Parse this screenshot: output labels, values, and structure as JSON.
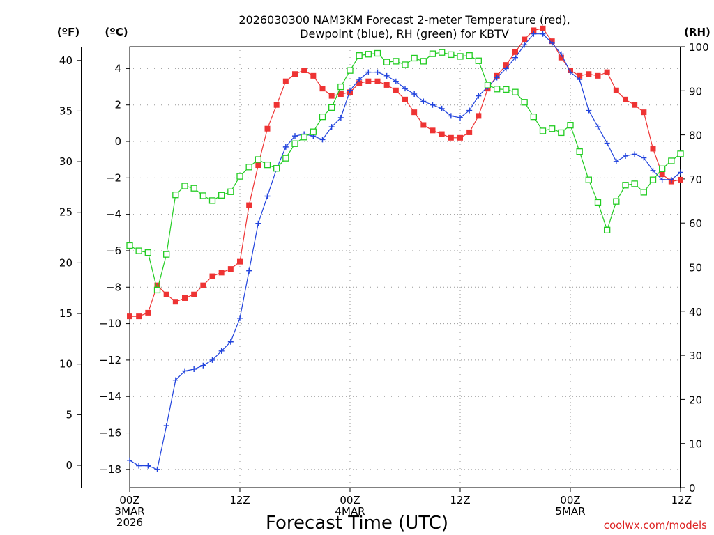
{
  "chart_data": {
    "type": "line",
    "title": [
      "2026030300 NAM3KM Forecast 2-meter Temperature (red),",
      "Dewpoint (blue), RH (green) for KBTV"
    ],
    "xlabel": "Forecast Time (UTC)",
    "credit": "coolwx.com/models",
    "units": {
      "fahrenheit": "(ºF)",
      "celsius": "(ºC)",
      "rh": "(RH)"
    },
    "x_range_hours": [
      0,
      60
    ],
    "x_ticks": [
      {
        "hour": 0,
        "lines": [
          "00Z",
          "3MAR",
          "2026"
        ]
      },
      {
        "hour": 12,
        "lines": [
          "12Z"
        ]
      },
      {
        "hour": 24,
        "lines": [
          "00Z",
          "4MAR"
        ]
      },
      {
        "hour": 36,
        "lines": [
          "12Z"
        ]
      },
      {
        "hour": 48,
        "lines": [
          "00Z",
          "5MAR"
        ]
      },
      {
        "hour": 60,
        "lines": [
          "12Z"
        ]
      }
    ],
    "celsius_axis": {
      "range": [
        -19.0,
        5.2
      ],
      "ticks": [
        -18,
        -16,
        -14,
        -12,
        -10,
        -8,
        -6,
        -4,
        -2,
        0,
        2,
        4
      ]
    },
    "fahrenheit_axis": {
      "ticks": [
        0,
        5,
        10,
        15,
        20,
        25,
        30,
        35,
        40
      ]
    },
    "rh_axis": {
      "range": [
        0,
        100
      ],
      "ticks": [
        0,
        10,
        20,
        30,
        40,
        50,
        60,
        70,
        80,
        90,
        100
      ]
    },
    "series": [
      {
        "name": "2-meter Temperature",
        "unit": "C",
        "color": "#ee3333",
        "marker": "filled-square",
        "x": [
          0,
          1,
          2,
          3,
          4,
          5,
          6,
          7,
          8,
          9,
          10,
          11,
          12,
          13,
          14,
          15,
          16,
          17,
          18,
          19,
          20,
          21,
          22,
          23,
          24,
          25,
          26,
          27,
          28,
          29,
          30,
          31,
          32,
          33,
          34,
          35,
          36,
          37,
          38,
          39,
          40,
          41,
          42,
          43,
          44,
          45,
          46,
          47,
          48,
          49,
          50,
          51,
          52,
          53,
          54,
          55,
          56,
          57,
          58,
          59,
          60
        ],
        "values": [
          -9.6,
          -9.6,
          -9.4,
          -7.9,
          -8.4,
          -8.8,
          -8.6,
          -8.4,
          -7.9,
          -7.4,
          -7.2,
          -7.0,
          -6.6,
          -3.5,
          -1.3,
          0.7,
          2.0,
          3.3,
          3.7,
          3.9,
          3.6,
          2.9,
          2.5,
          2.6,
          2.7,
          3.2,
          3.3,
          3.3,
          3.1,
          2.8,
          2.3,
          1.6,
          0.9,
          0.6,
          0.4,
          0.2,
          0.2,
          0.5,
          1.4,
          2.9,
          3.6,
          4.2,
          4.9,
          5.6,
          6.1,
          6.2,
          5.5,
          4.6,
          3.9,
          3.6,
          3.7,
          3.6,
          3.8,
          2.8,
          2.3,
          2.0,
          1.6,
          -0.4,
          -1.8,
          -2.2,
          -2.1
        ]
      },
      {
        "name": "Dewpoint",
        "unit": "C",
        "color": "#2244dd",
        "marker": "plus",
        "x": [
          0,
          1,
          2,
          3,
          4,
          5,
          6,
          7,
          8,
          9,
          10,
          11,
          12,
          13,
          14,
          15,
          16,
          17,
          18,
          19,
          20,
          21,
          22,
          23,
          24,
          25,
          26,
          27,
          28,
          29,
          30,
          31,
          32,
          33,
          34,
          35,
          36,
          37,
          38,
          39,
          40,
          41,
          42,
          43,
          44,
          45,
          46,
          47,
          48,
          49,
          50,
          51,
          52,
          53,
          54,
          55,
          56,
          57,
          58,
          59,
          60
        ],
        "values": [
          -17.5,
          -17.8,
          -17.8,
          -18.0,
          -15.6,
          -13.1,
          -12.6,
          -12.5,
          -12.3,
          -12.0,
          -11.5,
          -11.0,
          -9.7,
          -7.1,
          -4.5,
          -3.0,
          -1.5,
          -0.3,
          0.3,
          0.4,
          0.3,
          0.1,
          0.8,
          1.3,
          2.8,
          3.4,
          3.8,
          3.8,
          3.6,
          3.3,
          2.9,
          2.6,
          2.2,
          2.0,
          1.8,
          1.4,
          1.3,
          1.7,
          2.5,
          3.0,
          3.5,
          4.0,
          4.6,
          5.3,
          5.9,
          5.9,
          5.4,
          4.8,
          3.8,
          3.4,
          1.7,
          0.8,
          -0.1,
          -1.1,
          -0.8,
          -0.7,
          -0.9,
          -1.6,
          -2.1,
          -2.1,
          -1.7
        ]
      },
      {
        "name": "RH",
        "unit": "%",
        "color": "#22cc22",
        "marker": "open-square",
        "x": [
          0,
          1,
          2,
          3,
          4,
          5,
          6,
          7,
          8,
          9,
          10,
          11,
          12,
          13,
          14,
          15,
          16,
          17,
          18,
          19,
          20,
          21,
          22,
          23,
          24,
          25,
          26,
          27,
          28,
          29,
          30,
          31,
          32,
          33,
          34,
          35,
          36,
          37,
          38,
          39,
          40,
          41,
          42,
          43,
          44,
          45,
          46,
          47,
          48,
          49,
          50,
          51,
          52,
          53,
          54,
          55,
          56,
          57,
          58,
          59,
          60
        ],
        "values": [
          54.9,
          53.7,
          53.3,
          44.8,
          52.9,
          66.4,
          68.4,
          67.9,
          66.2,
          65.1,
          66.3,
          67.1,
          70.6,
          72.7,
          74.4,
          73.2,
          72.4,
          74.7,
          78.0,
          79.5,
          80.7,
          84.1,
          86.2,
          90.9,
          94.6,
          98.0,
          98.3,
          98.5,
          96.5,
          96.7,
          95.9,
          97.4,
          96.7,
          98.4,
          98.7,
          98.2,
          97.8,
          98.0,
          96.8,
          91.3,
          90.4,
          90.3,
          89.7,
          87.4,
          84.1,
          80.9,
          81.4,
          80.5,
          82.2,
          76.2,
          69.8,
          64.7,
          58.4,
          64.9,
          68.6,
          68.9,
          67.0,
          69.8,
          72.3,
          74.1,
          75.7
        ]
      }
    ]
  }
}
